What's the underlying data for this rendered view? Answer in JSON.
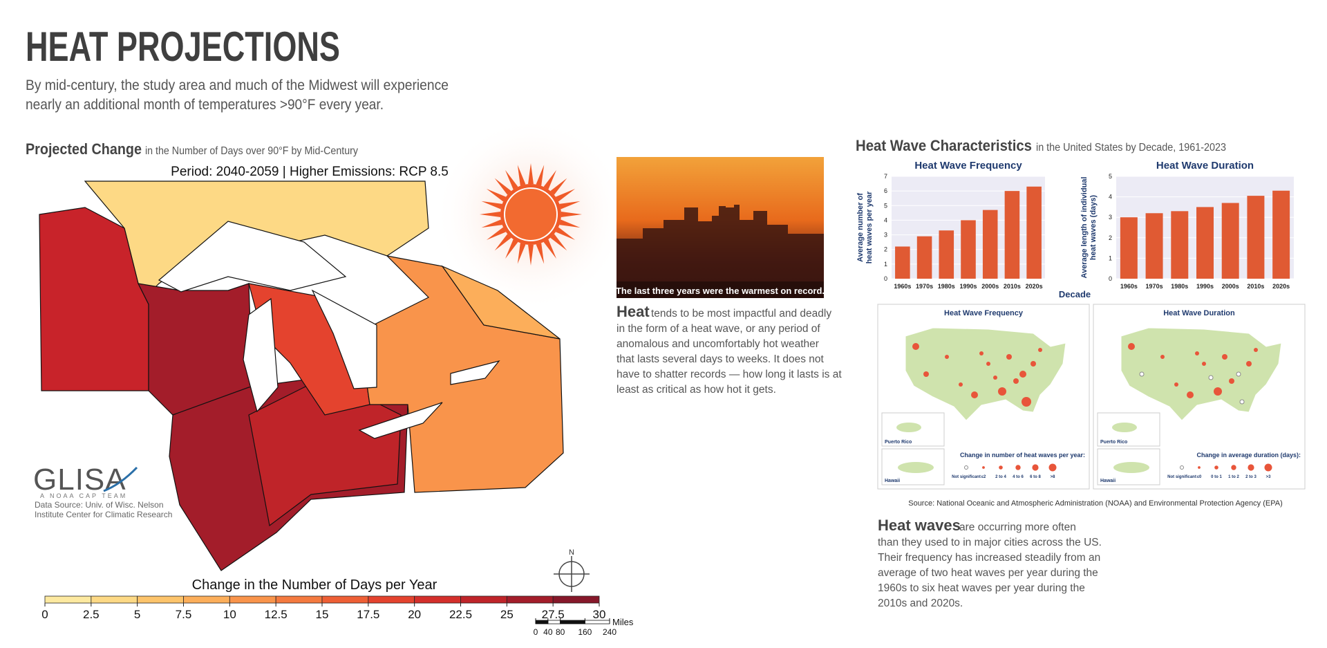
{
  "header": {
    "title": "HEAT PROJECTIONS",
    "subtitle": [
      "By mid-century, the study area and much of the Midwest will experience",
      "nearly an additional month of temperatures >90°F every year."
    ]
  },
  "projection_map": {
    "heading": "Projected Change",
    "heading_rest": "in the Number of Days over 90°F by Mid-Century",
    "period": "Period: 2040-2059 | Higher Emissions: RCP 8.5",
    "logo": "GLISA",
    "logo_tagline": "A NOAA CAP TEAM",
    "source": [
      "Data Source: Univ. of Wisc. Nelson",
      "Institute Center for Climatic Research"
    ],
    "compass": "N",
    "colorbar": {
      "title": "Change in the Number of Days per Year",
      "ticks": [
        0,
        2.5,
        5,
        7.5,
        10,
        12.5,
        15,
        17.5,
        20,
        22.5,
        25,
        27.5,
        30
      ],
      "colors": [
        "#fde9a0",
        "#fdd985",
        "#fdc46b",
        "#fcae5a",
        "#f9944b",
        "#f47a3f",
        "#ee5f35",
        "#e4432e",
        "#d42f2b",
        "#bf2429",
        "#a31d2a",
        "#86182a"
      ]
    },
    "scalebar": {
      "unit": "Miles",
      "ticks": [
        0,
        40,
        80,
        160,
        240
      ]
    }
  },
  "photo": {
    "caption": "The last three years were the warmest on record."
  },
  "heat_text": {
    "lead": "Heat",
    "lines": [
      "tends to be most impactful and deadly",
      "in the form of a heat wave, or any period of",
      "anomalous and uncomfortably hot weather",
      "that lasts several days to weeks. It does not",
      "have to shatter records — how long it lasts is at",
      "least as critical as how hot it gets."
    ]
  },
  "characteristics": {
    "heading": "Heat Wave Characteristics",
    "heading_rest": "in the United States by Decade, 1961-2023"
  },
  "chart_data": [
    {
      "type": "bar",
      "title": "Heat Wave Frequency",
      "ylabel": [
        "Average number of",
        "heat waves per year"
      ],
      "categories": [
        "1960s",
        "1970s",
        "1980s",
        "1990s",
        "2000s",
        "2010s",
        "2020s"
      ],
      "values": [
        2.2,
        2.9,
        3.3,
        4.0,
        4.7,
        6.0,
        6.3
      ],
      "color": "#e05a33",
      "ylim": [
        0,
        7
      ],
      "yticks": [
        0,
        1,
        2,
        3,
        4,
        5,
        6,
        7
      ],
      "grid": true
    },
    {
      "type": "bar",
      "title": "Heat Wave Duration",
      "ylabel": [
        "Average length of individual",
        "heat waves (days)"
      ],
      "xlabel": "Decade",
      "categories": [
        "1960s",
        "1970s",
        "1980s",
        "1990s",
        "2000s",
        "2010s",
        "2020s"
      ],
      "values": [
        3.0,
        3.2,
        3.3,
        3.5,
        3.7,
        4.05,
        4.3
      ],
      "color": "#e05a33",
      "ylim": [
        0,
        5
      ],
      "yticks": [
        0,
        1,
        2,
        3,
        4,
        5
      ],
      "grid": true
    }
  ],
  "us_maps": [
    {
      "title": "Heat Wave Frequency",
      "inset_1": "Puerto Rico",
      "inset_2": "Hawaii",
      "legend_title": "Change in number of heat waves per year:",
      "legend_items": [
        "Not significant",
        "≤2",
        "2 to 4",
        "4 to 6",
        "6 to 8",
        ">8"
      ]
    },
    {
      "title": "Heat Wave Duration",
      "inset_1": "Puerto Rico",
      "inset_2": "Hawaii",
      "legend_title": "Change in average duration (days):",
      "legend_items": [
        "Not significant",
        "≤0",
        "0 to 1",
        "1 to 2",
        "2 to 3",
        ">3"
      ]
    }
  ],
  "source": "Source: National Oceanic and Atmospheric Administration (NOAA) and Environmental Protection Agency (EPA)",
  "heatwaves_text": {
    "lead": "Heat waves",
    "lines": [
      "are occurring more often",
      "than they used to in major cities across the US.",
      "Their frequency has increased steadily from an",
      "average of two heat waves per year during the",
      "1960s to six heat waves per year during the",
      "2010s and 2020s."
    ]
  }
}
